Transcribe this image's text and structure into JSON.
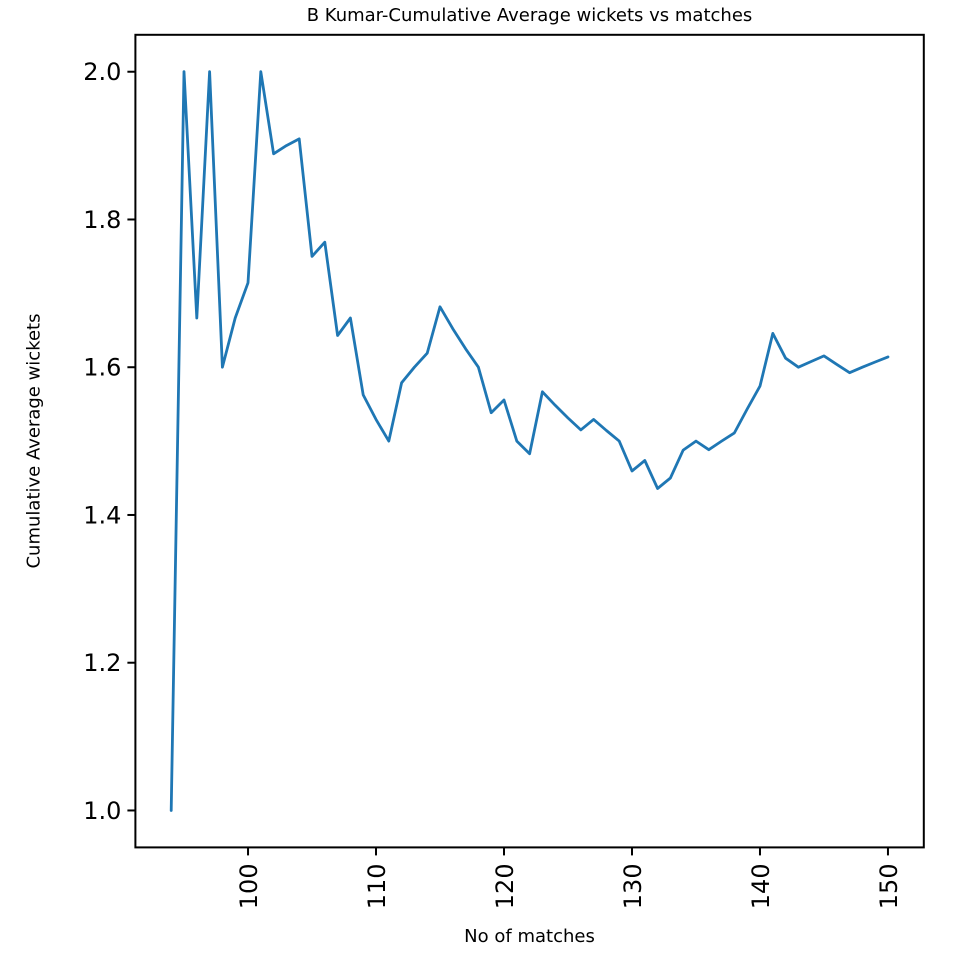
{
  "chart_data": {
    "type": "line",
    "title": "B Kumar-Cumulative Average wickets vs matches",
    "xlabel": "No of matches",
    "ylabel": "Cumulative Average wickets",
    "series_name": "Cumulative average wickets",
    "x": [
      94,
      95,
      96,
      97,
      98,
      99,
      100,
      101,
      102,
      103,
      104,
      105,
      106,
      107,
      108,
      109,
      110,
      111,
      112,
      113,
      114,
      115,
      116,
      117,
      118,
      119,
      120,
      121,
      122,
      123,
      124,
      125,
      126,
      127,
      128,
      129,
      130,
      131,
      132,
      133,
      134,
      135,
      136,
      137,
      138,
      139,
      140,
      141,
      142,
      143,
      144,
      145,
      146,
      147,
      148,
      149,
      150
    ],
    "y": [
      1.0,
      2.0,
      1.6667,
      2.0,
      1.6,
      1.6667,
      1.7143,
      2.0,
      1.8889,
      1.9,
      1.9091,
      1.75,
      1.7692,
      1.6429,
      1.6667,
      1.5625,
      1.5294,
      1.5,
      1.5789,
      1.6,
      1.619,
      1.6818,
      1.6522,
      1.625,
      1.6,
      1.5385,
      1.5556,
      1.5,
      1.4828,
      1.5667,
      1.5484,
      1.5313,
      1.5152,
      1.5294,
      1.5143,
      1.5,
      1.4595,
      1.4737,
      1.4359,
      1.45,
      1.4878,
      1.5,
      1.4884,
      1.5,
      1.5111,
      1.5435,
      1.5745,
      1.6458,
      1.6122,
      1.6,
      1.6078,
      1.6154,
      1.6038,
      1.5926,
      1.6,
      1.6071,
      1.614
    ],
    "x_ticks": [
      100,
      110,
      120,
      130,
      140,
      150
    ],
    "y_ticks": [
      "1.0",
      "1.2",
      "1.4",
      "1.6",
      "1.8",
      "2.0"
    ],
    "xlim": [
      91.2,
      152.8
    ],
    "ylim": [
      0.95,
      2.05
    ],
    "x_tick_rotation": 90,
    "grid": false,
    "legend_position": "none",
    "line_color": "#1f77b4",
    "axis_color": "#000000",
    "background_color": "#ffffff"
  }
}
